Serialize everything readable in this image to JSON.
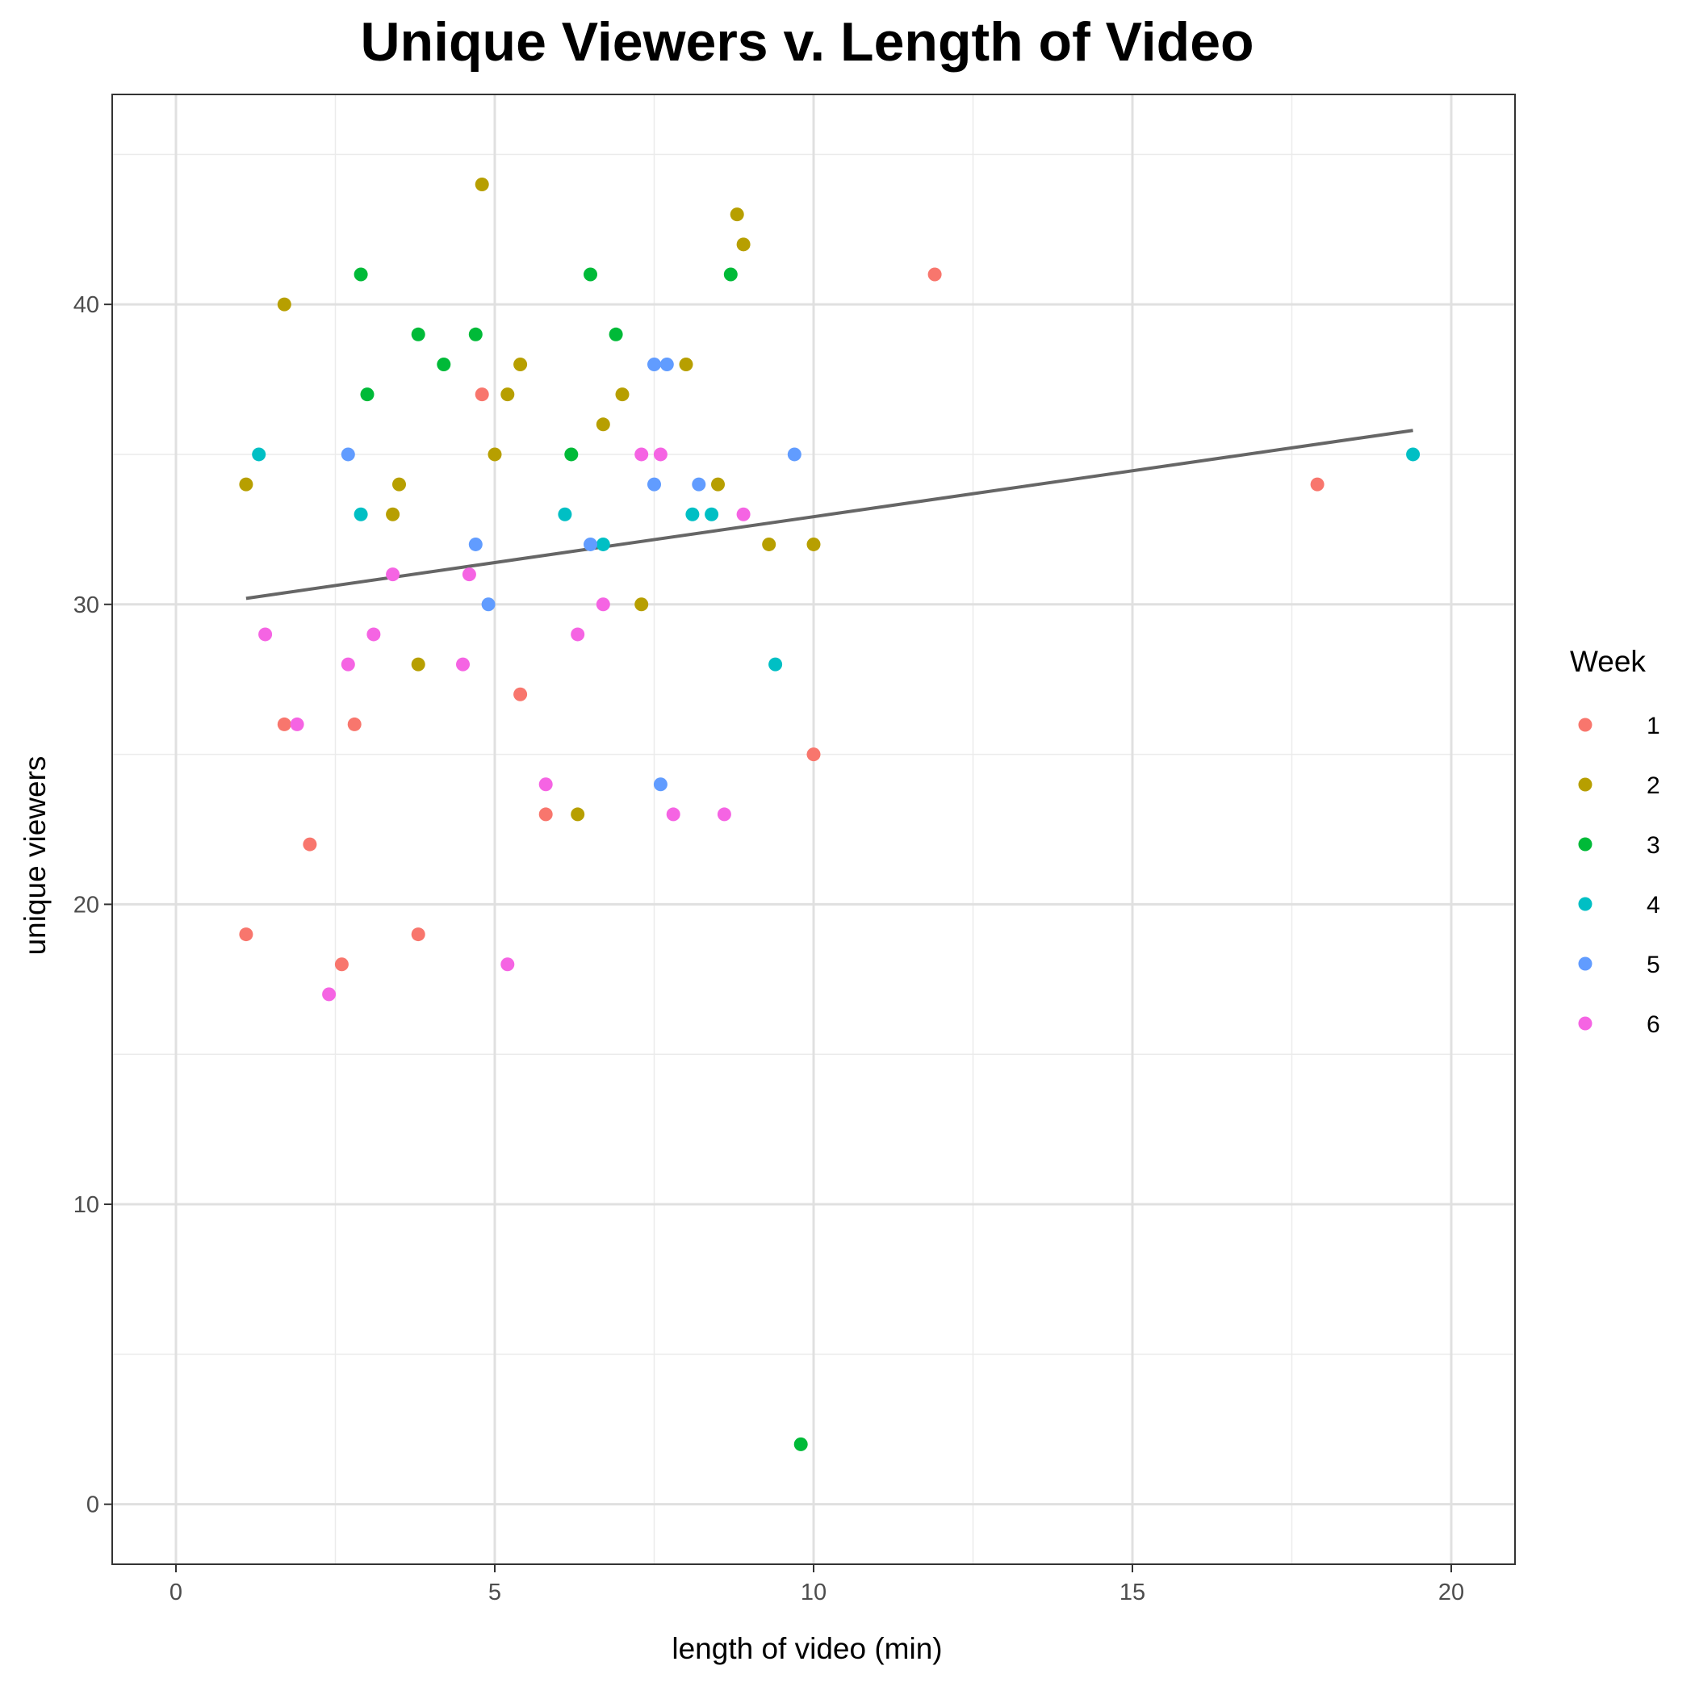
{
  "chart_data": {
    "type": "scatter",
    "title": "Unique Viewers v. Length of Video",
    "xlabel": "length of video (min)",
    "ylabel": "unique viewers",
    "xlim": [
      -1,
      21
    ],
    "ylim": [
      -2,
      47
    ],
    "x_ticks": [
      0,
      5,
      10,
      15,
      20
    ],
    "y_ticks": [
      0,
      10,
      20,
      30,
      40
    ],
    "grid": true,
    "legend": {
      "title": "Week",
      "position": "right"
    },
    "trendline": {
      "x": [
        1.1,
        19.4
      ],
      "y": [
        30.2,
        35.8
      ],
      "color": "#666666"
    },
    "series": [
      {
        "name": "1",
        "color": "#F8766D",
        "points": [
          [
            1.1,
            19
          ],
          [
            1.7,
            26
          ],
          [
            2.1,
            22
          ],
          [
            2.6,
            18
          ],
          [
            2.8,
            26
          ],
          [
            3.8,
            19
          ],
          [
            4.8,
            37
          ],
          [
            5.4,
            27
          ],
          [
            5.8,
            23
          ],
          [
            10.0,
            25
          ],
          [
            11.9,
            41
          ],
          [
            17.9,
            34
          ]
        ]
      },
      {
        "name": "2",
        "color": "#B79F00",
        "points": [
          [
            1.1,
            34
          ],
          [
            1.7,
            40
          ],
          [
            3.4,
            33
          ],
          [
            3.5,
            34
          ],
          [
            3.8,
            28
          ],
          [
            4.8,
            44
          ],
          [
            5.0,
            35
          ],
          [
            5.2,
            37
          ],
          [
            5.4,
            38
          ],
          [
            6.3,
            23
          ],
          [
            6.7,
            36
          ],
          [
            7.0,
            37
          ],
          [
            7.3,
            30
          ],
          [
            8.0,
            38
          ],
          [
            8.5,
            34
          ],
          [
            8.8,
            43
          ],
          [
            8.9,
            42
          ],
          [
            9.3,
            32
          ],
          [
            10.0,
            32
          ]
        ]
      },
      {
        "name": "3",
        "color": "#00BA38",
        "points": [
          [
            2.9,
            41
          ],
          [
            3.0,
            37
          ],
          [
            3.8,
            39
          ],
          [
            4.2,
            38
          ],
          [
            4.7,
            39
          ],
          [
            6.2,
            35
          ],
          [
            6.5,
            41
          ],
          [
            6.9,
            39
          ],
          [
            8.7,
            41
          ],
          [
            9.8,
            2
          ]
        ]
      },
      {
        "name": "4",
        "color": "#00BFC4",
        "points": [
          [
            1.3,
            35
          ],
          [
            2.9,
            33
          ],
          [
            6.1,
            33
          ],
          [
            6.7,
            32
          ],
          [
            8.1,
            33
          ],
          [
            8.4,
            33
          ],
          [
            9.4,
            28
          ],
          [
            19.4,
            35
          ]
        ]
      },
      {
        "name": "5",
        "color": "#619CFF",
        "points": [
          [
            2.7,
            35
          ],
          [
            4.7,
            32
          ],
          [
            4.9,
            30
          ],
          [
            6.5,
            32
          ],
          [
            7.5,
            34
          ],
          [
            7.5,
            38
          ],
          [
            7.6,
            24
          ],
          [
            7.7,
            38
          ],
          [
            8.2,
            34
          ],
          [
            9.7,
            35
          ]
        ]
      },
      {
        "name": "6",
        "color": "#F564E3",
        "points": [
          [
            1.4,
            29
          ],
          [
            1.9,
            26
          ],
          [
            2.4,
            17
          ],
          [
            2.7,
            28
          ],
          [
            3.1,
            29
          ],
          [
            3.4,
            31
          ],
          [
            4.5,
            28
          ],
          [
            4.6,
            31
          ],
          [
            5.2,
            18
          ],
          [
            5.8,
            24
          ],
          [
            6.3,
            29
          ],
          [
            6.7,
            30
          ],
          [
            7.3,
            35
          ],
          [
            7.6,
            35
          ],
          [
            7.8,
            23
          ],
          [
            8.6,
            23
          ],
          [
            8.9,
            33
          ]
        ]
      }
    ]
  }
}
